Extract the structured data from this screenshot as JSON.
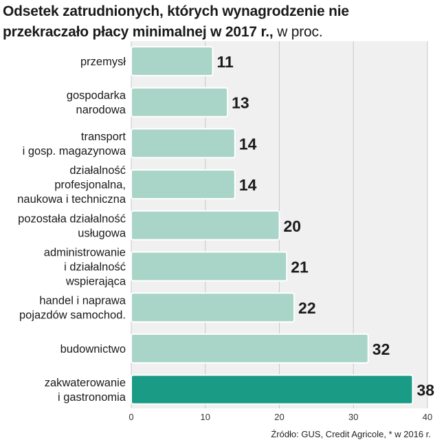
{
  "chart_data": {
    "type": "bar",
    "orientation": "horizontal",
    "title": "Odsetek zatrudnionych, których wynagrodzenie nie przekraczało płacy minimalnej w 2017 r.,",
    "title_line1": "Odsetek zatrudnionych, których wynagrodzenie nie",
    "title_line2": "przekraczało płacy minimalnej w 2017 r.,",
    "unit": "w proc.",
    "categories": [
      [
        "przemysł"
      ],
      [
        "gospodarka",
        "narodowa"
      ],
      [
        "transport",
        "i gosp. magazynowa"
      ],
      [
        "działalność",
        "profesjonalna,",
        "naukowa i techniczna"
      ],
      [
        "pozostała działalność",
        "usługowa"
      ],
      [
        "administrowanie",
        "i działalność",
        "wspierająca"
      ],
      [
        "handel i naprawa",
        "pojazdów samochod."
      ],
      [
        "budownictwo"
      ],
      [
        "zakwaterowanie",
        "i gastronomia"
      ]
    ],
    "values": [
      11,
      13,
      14,
      14,
      20,
      21,
      22,
      32,
      38
    ],
    "highlight_index": 8,
    "xlim": [
      0,
      40
    ],
    "xticks": [
      0,
      10,
      20,
      30,
      40
    ],
    "grid": true,
    "xlabel": "",
    "ylabel": "",
    "colors": {
      "bar": "#a8d5c7",
      "bar_highlight": "#1a9b85",
      "bar_edge": "#ffffff",
      "grid": "#c8c8c8",
      "panel": "#f0f0f0"
    }
  },
  "source": "Źródło: GUS, Credit Agricole, * w 2016 r."
}
